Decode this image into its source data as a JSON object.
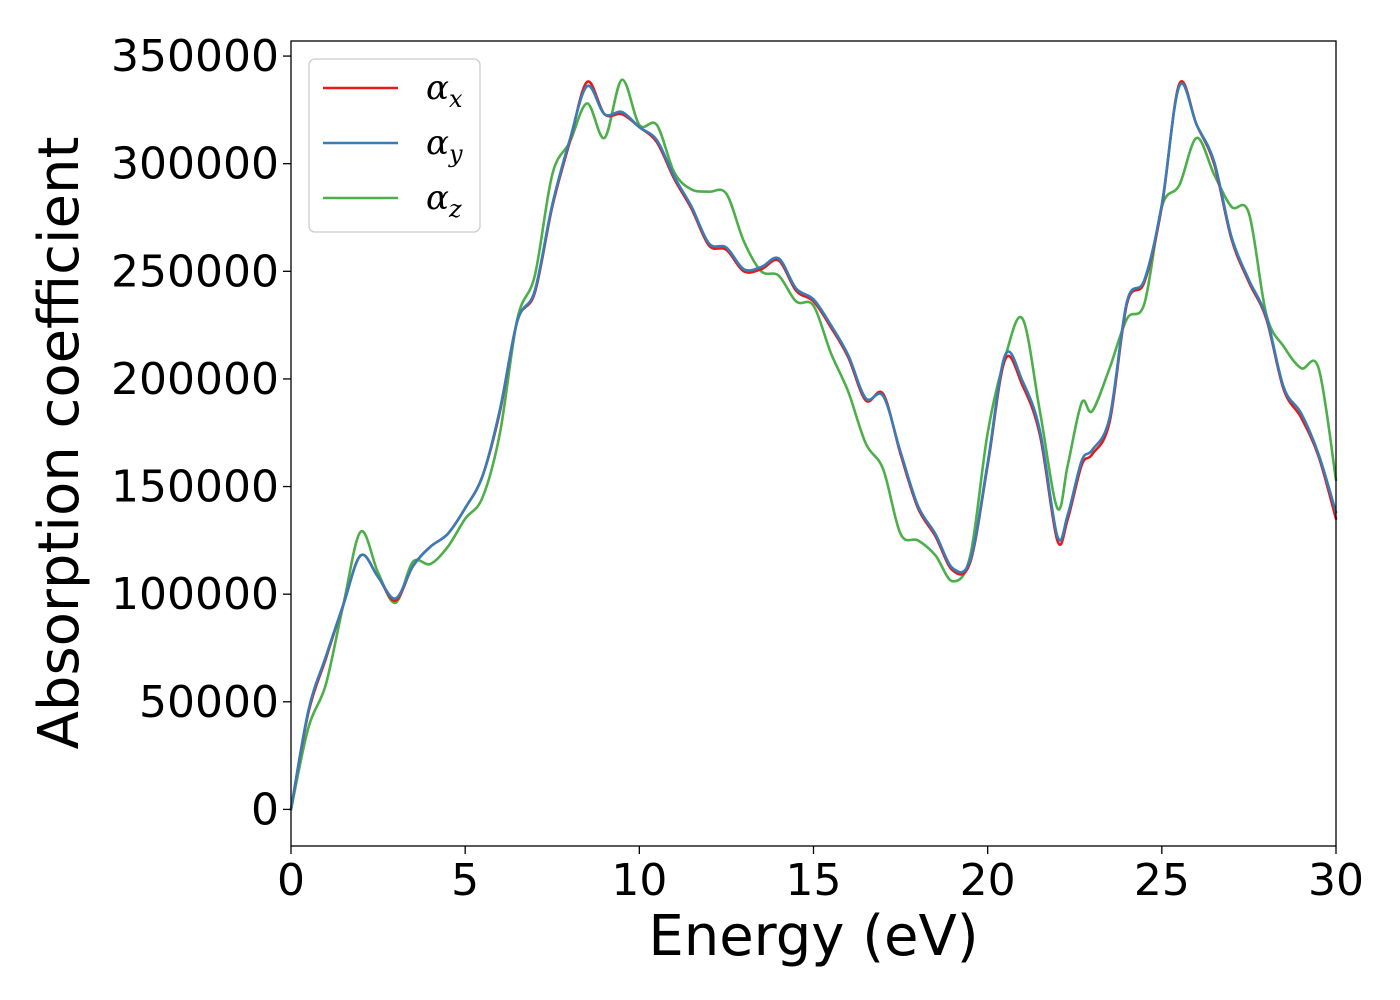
{
  "chart_data": {
    "type": "line",
    "xlabel": "Energy (eV)",
    "ylabel": "Absorption coefficient",
    "xlim": [
      0,
      30
    ],
    "ylim": [
      -17000,
      357000
    ],
    "xticks": [
      "0",
      "5",
      "10",
      "15",
      "20",
      "25",
      "30"
    ],
    "yticks": [
      "0",
      "50000",
      "100000",
      "150000",
      "200000",
      "250000",
      "300000",
      "350000"
    ],
    "grid": false,
    "legend": {
      "position": "top-left"
    },
    "series": [
      {
        "name": "αx",
        "base": "α",
        "sub": "x",
        "color": "#e41a1c",
        "x": [
          0,
          0.5,
          1,
          1.5,
          2,
          2.5,
          3,
          3.5,
          4,
          4.5,
          5,
          5.5,
          6,
          6.5,
          7,
          7.5,
          8,
          8.5,
          9,
          9.5,
          10,
          10.5,
          11,
          11.5,
          12,
          12.5,
          13,
          13.5,
          14,
          14.5,
          15,
          15.5,
          16,
          16.5,
          17,
          17.5,
          18,
          18.5,
          19,
          19.5,
          20,
          20.5,
          21,
          21.5,
          22,
          22.3,
          22.7,
          23,
          23.5,
          24,
          24.5,
          25,
          25.5,
          26,
          26.5,
          27,
          27.5,
          28,
          28.5,
          29,
          29.5,
          30
        ],
        "y": [
          0,
          45000,
          70000,
          95000,
          118000,
          108000,
          97000,
          113000,
          122000,
          128000,
          140000,
          155000,
          185000,
          227000,
          240000,
          280000,
          310000,
          338000,
          323000,
          323000,
          317000,
          310000,
          293000,
          279000,
          262000,
          260000,
          250000,
          251000,
          255000,
          241000,
          236000,
          224000,
          210000,
          190000,
          193000,
          165000,
          140000,
          127000,
          111000,
          115000,
          160000,
          209000,
          197000,
          174000,
          125000,
          135000,
          160000,
          165000,
          180000,
          235000,
          245000,
          280000,
          337000,
          318000,
          300000,
          265000,
          245000,
          228000,
          195000,
          182000,
          164000,
          135000
        ]
      },
      {
        "name": "αy",
        "base": "α",
        "sub": "y",
        "color": "#377eb8",
        "x": [
          0,
          0.5,
          1,
          1.5,
          2,
          2.5,
          3,
          3.5,
          4,
          4.5,
          5,
          5.5,
          6,
          6.5,
          7,
          7.5,
          8,
          8.5,
          9,
          9.5,
          10,
          10.5,
          11,
          11.5,
          12,
          12.5,
          13,
          13.5,
          14,
          14.5,
          15,
          15.5,
          16,
          16.5,
          17,
          17.5,
          18,
          18.5,
          19,
          19.5,
          20,
          20.5,
          21,
          21.5,
          22,
          22.3,
          22.7,
          23,
          23.5,
          24,
          24.5,
          25,
          25.5,
          26,
          26.5,
          27,
          27.5,
          28,
          28.5,
          29,
          29.5,
          30
        ],
        "y": [
          0,
          46000,
          71000,
          95000,
          118000,
          108000,
          98000,
          113000,
          122000,
          128000,
          140000,
          155000,
          186000,
          227000,
          241000,
          281000,
          311000,
          336000,
          323000,
          324000,
          317000,
          311000,
          294000,
          280000,
          263000,
          261000,
          251000,
          252000,
          256000,
          242000,
          237000,
          225000,
          211000,
          191000,
          192000,
          166000,
          141000,
          128000,
          112000,
          116000,
          161000,
          211000,
          199000,
          176000,
          127000,
          137000,
          162000,
          167000,
          182000,
          236000,
          246000,
          281000,
          336000,
          318000,
          301000,
          266000,
          246000,
          229000,
          196000,
          184000,
          165000,
          138000
        ]
      },
      {
        "name": "αz",
        "base": "α",
        "sub": "z",
        "color": "#4daf4a",
        "x": [
          0,
          0.5,
          1,
          1.5,
          2,
          2.5,
          3,
          3.5,
          4,
          4.5,
          5,
          5.5,
          6,
          6.5,
          7,
          7.5,
          8,
          8.5,
          9,
          9.5,
          10,
          10.5,
          11,
          11.5,
          12,
          12.5,
          13,
          13.5,
          14,
          14.5,
          15,
          15.5,
          16,
          16.5,
          17,
          17.5,
          18,
          18.5,
          19,
          19.5,
          20,
          20.5,
          21,
          21.5,
          22,
          22.3,
          22.7,
          23,
          23.5,
          24,
          24.5,
          25,
          25.5,
          26,
          26.5,
          27,
          27.5,
          28,
          28.5,
          29,
          29.5,
          30
        ],
        "y": [
          0,
          38000,
          58000,
          95000,
          129000,
          110000,
          96000,
          115000,
          114000,
          122000,
          135000,
          145000,
          175000,
          228000,
          248000,
          295000,
          310000,
          328000,
          312000,
          339000,
          318000,
          318000,
          296000,
          288000,
          287000,
          286000,
          264000,
          250000,
          248000,
          236000,
          234000,
          212000,
          194000,
          170000,
          158000,
          128000,
          125000,
          118000,
          106000,
          118000,
          175000,
          210000,
          228000,
          185000,
          140000,
          160000,
          189000,
          185000,
          205000,
          228000,
          235000,
          280000,
          290000,
          312000,
          295000,
          280000,
          277000,
          230000,
          215000,
          205000,
          205000,
          153000
        ]
      }
    ]
  }
}
